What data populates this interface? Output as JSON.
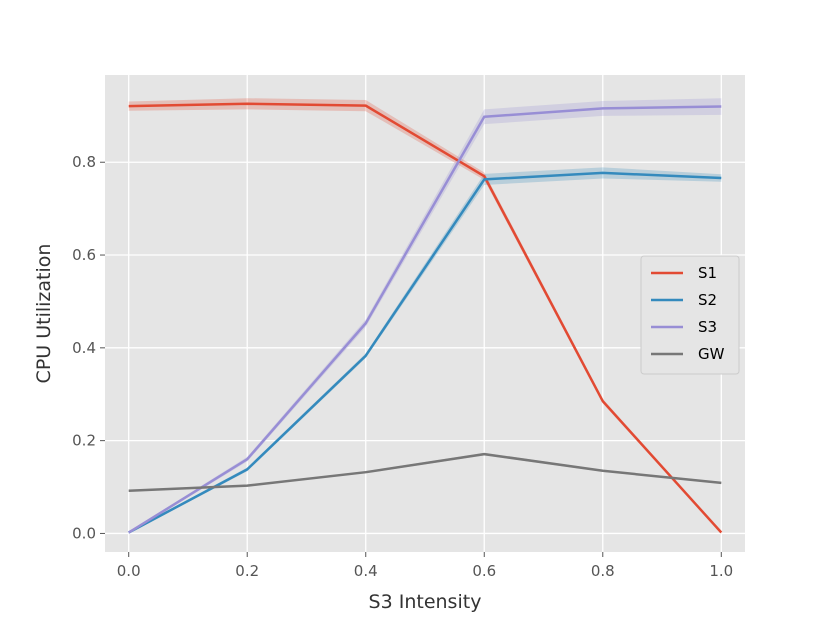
{
  "chart_data": {
    "type": "line",
    "xlabel": "S3 Intensity",
    "ylabel": "CPU Utilization",
    "xlim": [
      -0.04,
      1.04
    ],
    "ylim": [
      -0.04,
      0.988
    ],
    "xticks": [
      0.0,
      0.2,
      0.4,
      0.6,
      0.8,
      1.0
    ],
    "xtick_labels": [
      "0.0",
      "0.2",
      "0.4",
      "0.6",
      "0.8",
      "1.0"
    ],
    "yticks": [
      0.0,
      0.2,
      0.4,
      0.6,
      0.8
    ],
    "ytick_labels": [
      "0.0",
      "0.2",
      "0.4",
      "0.6",
      "0.8"
    ],
    "grid": true,
    "legend_position": "center-right",
    "x": [
      0.0,
      0.2,
      0.4,
      0.6,
      0.8,
      1.0
    ],
    "series": [
      {
        "name": "S1",
        "color": "#e24a33",
        "values": [
          0.921,
          0.926,
          0.922,
          0.77,
          0.285,
          0.002
        ],
        "band": [
          0.01,
          0.012,
          0.012,
          0.008,
          0.005,
          0.002
        ]
      },
      {
        "name": "S2",
        "color": "#348abd",
        "values": [
          0.002,
          0.138,
          0.383,
          0.763,
          0.777,
          0.766
        ],
        "band": [
          0.002,
          0.004,
          0.005,
          0.012,
          0.012,
          0.008
        ]
      },
      {
        "name": "S3",
        "color": "#988ed5",
        "values": [
          0.002,
          0.16,
          0.453,
          0.898,
          0.916,
          0.92
        ],
        "band": [
          0.002,
          0.005,
          0.008,
          0.016,
          0.016,
          0.018
        ]
      },
      {
        "name": "GW",
        "color": "#777777",
        "values": [
          0.092,
          0.103,
          0.132,
          0.171,
          0.135,
          0.109
        ],
        "band": [
          0.002,
          0.002,
          0.002,
          0.003,
          0.002,
          0.002
        ]
      }
    ]
  }
}
